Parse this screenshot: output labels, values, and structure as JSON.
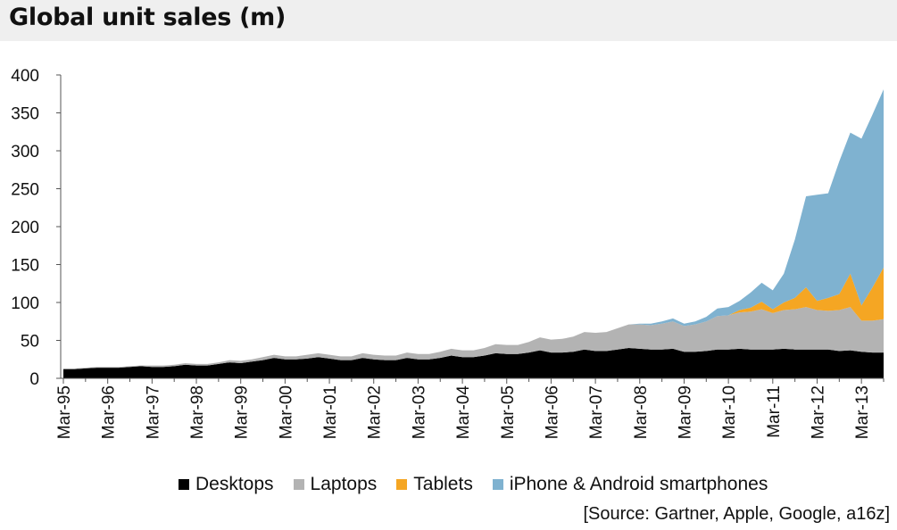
{
  "title": "Global unit sales (m)",
  "source": "[Source: Gartner, Apple, Google, a16z]",
  "chart_data": {
    "type": "area",
    "stacked": true,
    "title": "Global unit sales (m)",
    "xlabel": "",
    "ylabel": "",
    "ylim": [
      0,
      400
    ],
    "yticks": [
      0,
      50,
      100,
      150,
      200,
      250,
      300,
      350,
      400
    ],
    "x_tick_labels": [
      "Mar-95",
      "Mar-96",
      "Mar-97",
      "Mar-98",
      "Mar-99",
      "Mar-00",
      "Mar-01",
      "Mar-02",
      "Mar-03",
      "Mar-04",
      "Mar-05",
      "Mar-06",
      "Mar-07",
      "Mar-08",
      "Mar-09",
      "Mar-10",
      "Mar-11",
      "Mar-12",
      "Mar-13"
    ],
    "x": [
      "Mar-95",
      "Jun-95",
      "Sep-95",
      "Dec-95",
      "Mar-96",
      "Jun-96",
      "Sep-96",
      "Dec-96",
      "Mar-97",
      "Jun-97",
      "Sep-97",
      "Dec-97",
      "Mar-98",
      "Jun-98",
      "Sep-98",
      "Dec-98",
      "Mar-99",
      "Jun-99",
      "Sep-99",
      "Dec-99",
      "Mar-00",
      "Jun-00",
      "Sep-00",
      "Dec-00",
      "Mar-01",
      "Jun-01",
      "Sep-01",
      "Dec-01",
      "Mar-02",
      "Jun-02",
      "Sep-02",
      "Dec-02",
      "Mar-03",
      "Jun-03",
      "Sep-03",
      "Dec-03",
      "Mar-04",
      "Jun-04",
      "Sep-04",
      "Dec-04",
      "Mar-05",
      "Jun-05",
      "Sep-05",
      "Dec-05",
      "Mar-06",
      "Jun-06",
      "Sep-06",
      "Dec-06",
      "Mar-07",
      "Jun-07",
      "Sep-07",
      "Dec-07",
      "Mar-08",
      "Jun-08",
      "Sep-08",
      "Dec-08",
      "Mar-09",
      "Jun-09",
      "Sep-09",
      "Dec-09",
      "Mar-10",
      "Jun-10",
      "Sep-10",
      "Dec-10",
      "Mar-11",
      "Jun-11",
      "Sep-11",
      "Dec-11",
      "Mar-12",
      "Jun-12",
      "Sep-12",
      "Dec-12",
      "Mar-13",
      "Jun-13",
      "Sep-13"
    ],
    "series": [
      {
        "name": "Desktops",
        "color": "#000000",
        "values": [
          12,
          12,
          13,
          14,
          14,
          14,
          15,
          16,
          15,
          15,
          16,
          18,
          17,
          17,
          19,
          21,
          20,
          22,
          24,
          27,
          25,
          25,
          26,
          28,
          26,
          24,
          24,
          27,
          25,
          24,
          24,
          27,
          25,
          25,
          27,
          30,
          28,
          28,
          30,
          33,
          32,
          32,
          34,
          37,
          34,
          34,
          35,
          38,
          36,
          36,
          38,
          40,
          39,
          38,
          38,
          39,
          35,
          35,
          36,
          38,
          38,
          39,
          38,
          38,
          38,
          39,
          38,
          38,
          38,
          38,
          36,
          37,
          35,
          34,
          34
        ]
      },
      {
        "name": "Laptops",
        "color": "#b3b3b3",
        "values": [
          1,
          1,
          1,
          1,
          1,
          1,
          1,
          1,
          2,
          2,
          2,
          2,
          2,
          2,
          2,
          3,
          3,
          3,
          4,
          4,
          4,
          4,
          5,
          5,
          5,
          5,
          5,
          6,
          6,
          6,
          6,
          7,
          7,
          7,
          8,
          9,
          9,
          9,
          10,
          12,
          12,
          12,
          14,
          17,
          17,
          18,
          20,
          23,
          24,
          25,
          28,
          31,
          32,
          32,
          34,
          36,
          34,
          36,
          39,
          44,
          45,
          48,
          50,
          53,
          48,
          51,
          53,
          56,
          52,
          51,
          54,
          57,
          41,
          42,
          44
        ]
      },
      {
        "name": "Tablets",
        "color": "#f5a623",
        "values": [
          0,
          0,
          0,
          0,
          0,
          0,
          0,
          0,
          0,
          0,
          0,
          0,
          0,
          0,
          0,
          0,
          0,
          0,
          0,
          0,
          0,
          0,
          0,
          0,
          0,
          0,
          0,
          0,
          0,
          0,
          0,
          0,
          0,
          0,
          0,
          0,
          0,
          0,
          0,
          0,
          0,
          0,
          0,
          0,
          0,
          0,
          0,
          0,
          0,
          0,
          0,
          0,
          0,
          0,
          0,
          0,
          0,
          0,
          0,
          0,
          0,
          3,
          5,
          10,
          5,
          10,
          15,
          26,
          12,
          17,
          21,
          44,
          20,
          44,
          68
        ]
      },
      {
        "name": "iPhone & Android smartphones",
        "color": "#7fb2d0",
        "values": [
          0,
          0,
          0,
          0,
          0,
          0,
          0,
          0,
          0,
          0,
          0,
          0,
          0,
          0,
          0,
          0,
          0,
          0,
          0,
          0,
          0,
          0,
          0,
          0,
          0,
          0,
          0,
          0,
          0,
          0,
          0,
          0,
          0,
          0,
          0,
          0,
          0,
          0,
          0,
          0,
          0,
          0,
          0,
          0,
          0,
          0,
          0,
          0,
          0,
          0,
          0,
          0,
          1,
          2,
          3,
          4,
          3,
          4,
          6,
          10,
          11,
          12,
          20,
          25,
          25,
          38,
          77,
          120,
          140,
          138,
          175,
          186,
          220,
          228,
          235
        ]
      }
    ],
    "legend": "bottom",
    "grid": false
  }
}
